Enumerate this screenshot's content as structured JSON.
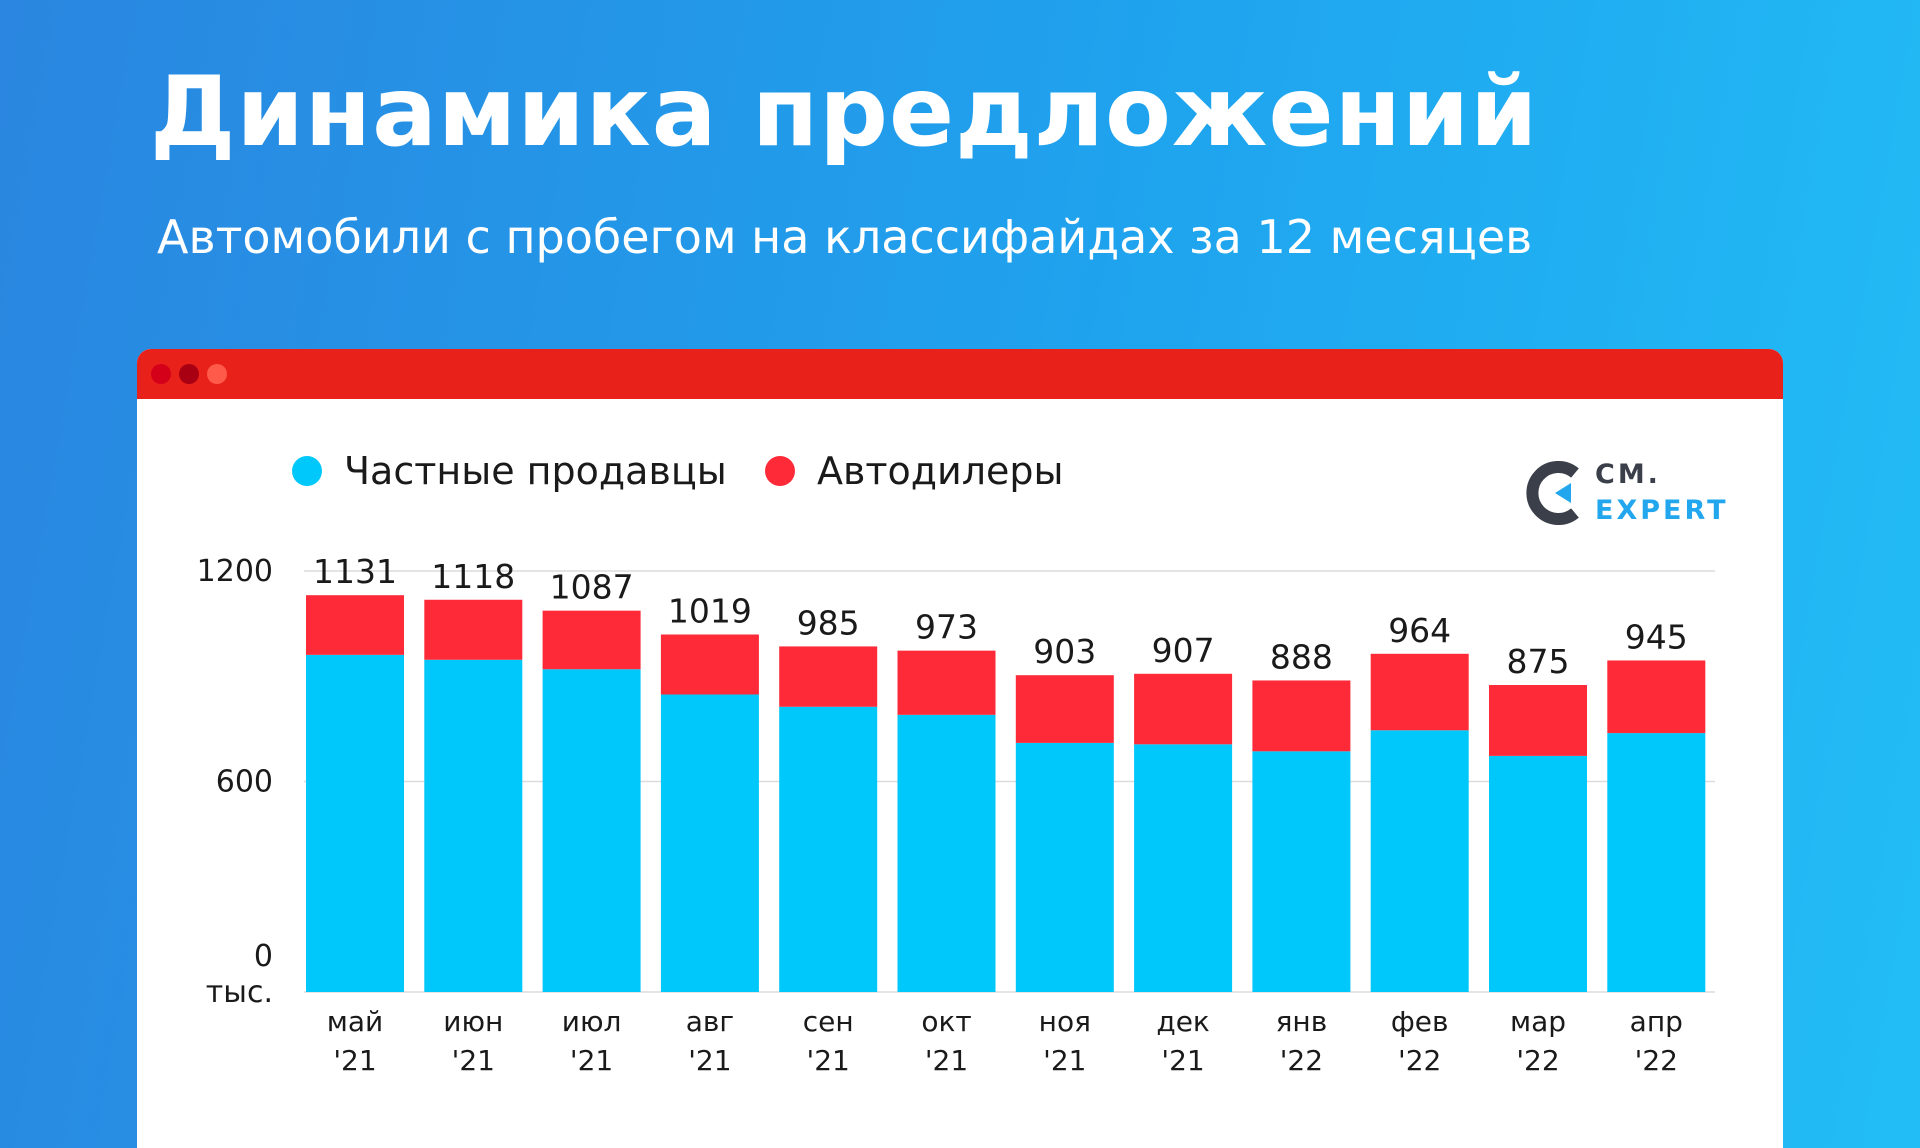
{
  "header": {
    "title": "Динамика предложений",
    "subtitle": "Автомобили с пробегом на классифайдах за 12 месяцев"
  },
  "window": {
    "titlebar_color": "#e8211b",
    "dot_colors": [
      "#d4001a",
      "#a80012",
      "#ff5a4a"
    ]
  },
  "logo": {
    "line1": "СМ.",
    "line2": "EXPERT",
    "color_dark": "#3a3f4a",
    "color_accent": "#22a7ee"
  },
  "legend": {
    "items": [
      {
        "label": "Частные продавцы",
        "color": "#00c8fa"
      },
      {
        "label": "Автодилеры",
        "color": "#ff2a38"
      }
    ]
  },
  "chart_data": {
    "type": "bar",
    "stacked": true,
    "categories": [
      [
        "май",
        "'21"
      ],
      [
        "июн",
        "'21"
      ],
      [
        "июл",
        "'21"
      ],
      [
        "авг",
        "'21"
      ],
      [
        "сен",
        "'21"
      ],
      [
        "окт",
        "'21"
      ],
      [
        "ноя",
        "'21"
      ],
      [
        "дек",
        "'21"
      ],
      [
        "янв",
        "'22"
      ],
      [
        "фев",
        "'22"
      ],
      [
        "мар",
        "'22"
      ],
      [
        "апр",
        "'22"
      ]
    ],
    "series": [
      {
        "name": "Частные продавцы",
        "color": "#00c8fa",
        "values": [
          961,
          947,
          920,
          848,
          813,
          790,
          710,
          706,
          686,
          746,
          673,
          738
        ]
      },
      {
        "name": "Автодилеры",
        "color": "#ff2a38",
        "values": [
          170,
          171,
          167,
          171,
          172,
          183,
          193,
          201,
          202,
          218,
          202,
          207
        ]
      }
    ],
    "totals": [
      1131,
      1118,
      1087,
      1019,
      985,
      973,
      903,
      907,
      888,
      964,
      875,
      945
    ],
    "yticks": [
      {
        "value": 0,
        "label": "0"
      },
      {
        "value": 600,
        "label": "600"
      },
      {
        "value": 1200,
        "label": "1200"
      }
    ],
    "yunit": "тыс.",
    "ylim": [
      0,
      1200
    ],
    "grid": true
  }
}
